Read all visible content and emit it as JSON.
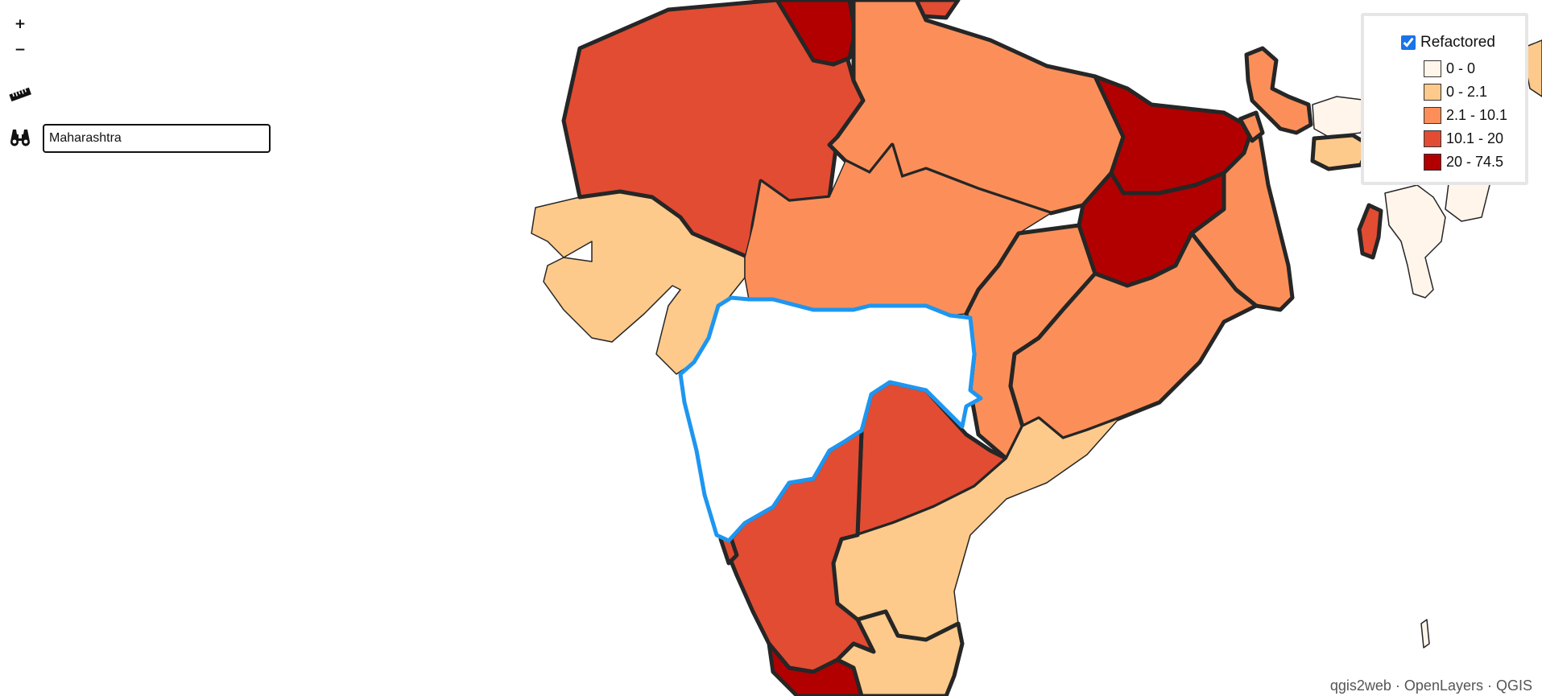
{
  "controls": {
    "zoom_in_label": "+",
    "zoom_out_label": "−",
    "measure_icon": "ruler-icon",
    "search_icon": "binoculars-icon"
  },
  "search": {
    "value": "Maharashtra",
    "placeholder": ""
  },
  "legend": {
    "title": "Refactored",
    "checked": true,
    "items": [
      {
        "label": "0 - 0",
        "color": "#fff5eb"
      },
      {
        "label": "0 - 2.1",
        "color": "#fdca8b"
      },
      {
        "label": "2.1 - 10.1",
        "color": "#fc8f59"
      },
      {
        "label": "10.1 - 20",
        "color": "#e24c33"
      },
      {
        "label": "20 - 74.5",
        "color": "#b20000"
      }
    ]
  },
  "map": {
    "selected_feature": "Maharashtra",
    "highlight_color": "#1e96f0",
    "border_color": "#262626"
  },
  "attribution": {
    "parts": [
      "qgis2web",
      "OpenLayers",
      "QGIS"
    ],
    "separator": " · "
  }
}
